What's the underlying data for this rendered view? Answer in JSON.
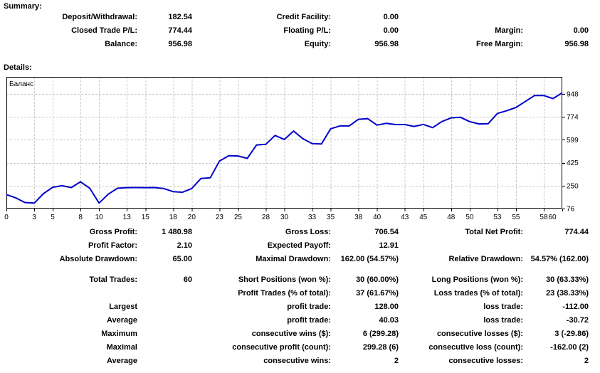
{
  "summary": {
    "heading": "Summary:",
    "rows": [
      {
        "l1": "Deposit/Withdrawal:",
        "v1": "182.54",
        "l2": "Credit Facility:",
        "v2": "0.00",
        "l3": "",
        "v3": ""
      },
      {
        "l1": "Closed Trade P/L:",
        "v1": "774.44",
        "l2": "Floating P/L:",
        "v2": "0.00",
        "l3": "Margin:",
        "v3": "0.00"
      },
      {
        "l1": "Balance:",
        "v1": "956.98",
        "l2": "Equity:",
        "v2": "956.98",
        "l3": "Free Margin:",
        "v3": "956.98"
      }
    ]
  },
  "details": {
    "heading": "Details:",
    "rows": [
      {
        "l1": "Gross Profit:",
        "v1": "1 480.98",
        "l2": "Gross Loss:",
        "v2": "706.54",
        "l3": "Total Net Profit:",
        "v3": "774.44"
      },
      {
        "l1": "Profit Factor:",
        "v1": "2.10",
        "l2": "Expected Payoff:",
        "v2": "12.91",
        "l3": "",
        "v3": ""
      },
      {
        "l1": "Absolute Drawdown:",
        "v1": "65.00",
        "l2": "Maximal Drawdown:",
        "v2": "162.00 (54.57%)",
        "l3": "Relative Drawdown:",
        "v3": "54.57% (162.00)"
      },
      {
        "l1": "Total Trades:",
        "v1": "60",
        "l2": "Short Positions (won %):",
        "v2": "30 (60.00%)",
        "l3": "Long Positions (won %):",
        "v3": "30 (63.33%)"
      },
      {
        "l1": "",
        "v1": "",
        "l2": "Profit Trades (% of total):",
        "v2": "37 (61.67%)",
        "l3": "Loss trades (% of total):",
        "v3": "23 (38.33%)"
      },
      {
        "l1": "Largest",
        "v1": "",
        "l2": "profit trade:",
        "v2": "128.00",
        "l3": "loss trade:",
        "v3": "-112.00"
      },
      {
        "l1": "Average",
        "v1": "",
        "l2": "profit trade:",
        "v2": "40.03",
        "l3": "loss trade:",
        "v3": "-30.72"
      },
      {
        "l1": "Maximum",
        "v1": "",
        "l2": "consecutive wins ($):",
        "v2": "6 (299.28)",
        "l3": "consecutive losses ($):",
        "v3": "3 (-29.86)"
      },
      {
        "l1": "Maximal",
        "v1": "",
        "l2": "consecutive profit (count):",
        "v2": "299.28 (6)",
        "l3": "consecutive loss (count):",
        "v3": "-162.00 (2)"
      },
      {
        "l1": "Average",
        "v1": "",
        "l2": "consecutive wins:",
        "v2": "2",
        "l3": "consecutive losses:",
        "v3": "2"
      }
    ]
  },
  "chart_data": {
    "type": "line",
    "legend": "Баланс",
    "x_ticks": [
      0,
      3,
      5,
      8,
      10,
      13,
      15,
      18,
      20,
      23,
      25,
      28,
      30,
      33,
      35,
      38,
      40,
      43,
      45,
      48,
      50,
      53,
      55,
      58,
      60
    ],
    "y_ticks": [
      948,
      774,
      599,
      425,
      250,
      76
    ],
    "xlim": [
      0,
      60
    ],
    "ylim": [
      76,
      1078
    ],
    "grid": true,
    "line_color": "#0000C8",
    "grid_color": "#C8C8C8",
    "border_color": "#000000",
    "series": [
      {
        "name": "Баланс",
        "values": [
          182.5,
          158,
          122,
          117.5,
          190,
          238,
          250,
          236,
          279.5,
          230,
          117.5,
          186,
          231,
          235,
          236,
          235,
          236,
          228,
          205,
          200,
          228,
          305,
          310,
          438,
          478,
          476,
          458,
          560,
          565,
          632,
          602,
          666,
          608,
          570,
          567,
          683,
          705,
          705,
          755,
          760,
          711,
          725,
          715,
          715,
          701,
          716,
          692,
          738,
          766,
          771,
          738,
          720,
          722,
          800,
          820,
          845,
          890,
          936,
          936,
          913,
          956.98
        ]
      }
    ]
  }
}
